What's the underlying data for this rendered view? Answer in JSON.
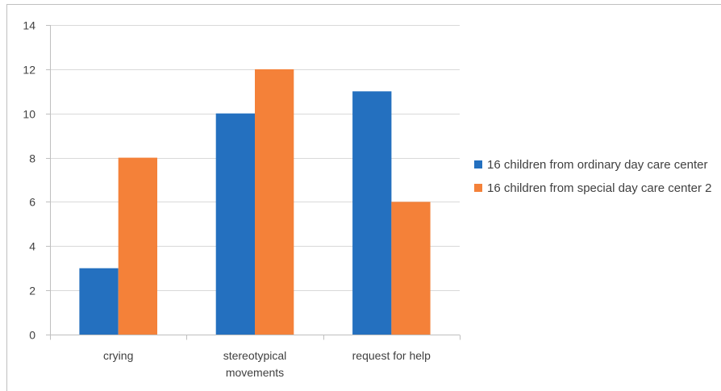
{
  "chart_data": {
    "type": "bar",
    "categories": [
      "crying",
      "stereotypical movements",
      "request for help"
    ],
    "category_lines": [
      [
        "crying"
      ],
      [
        "stereotypical",
        "movements"
      ],
      [
        "request for help"
      ]
    ],
    "series": [
      {
        "name": "16 children from ordinary day care center",
        "values": [
          3,
          10,
          11
        ],
        "color": "#2470bf"
      },
      {
        "name": "16 children from special day care center 2",
        "values": [
          8,
          12,
          6
        ],
        "color": "#f48139"
      }
    ],
    "ylim": [
      0,
      14
    ],
    "yticks": [
      "0",
      "2",
      "4",
      "6",
      "8",
      "10",
      "12",
      "14"
    ],
    "grid": true,
    "legend_position": "right",
    "title": "",
    "xlabel": "",
    "ylabel": ""
  }
}
